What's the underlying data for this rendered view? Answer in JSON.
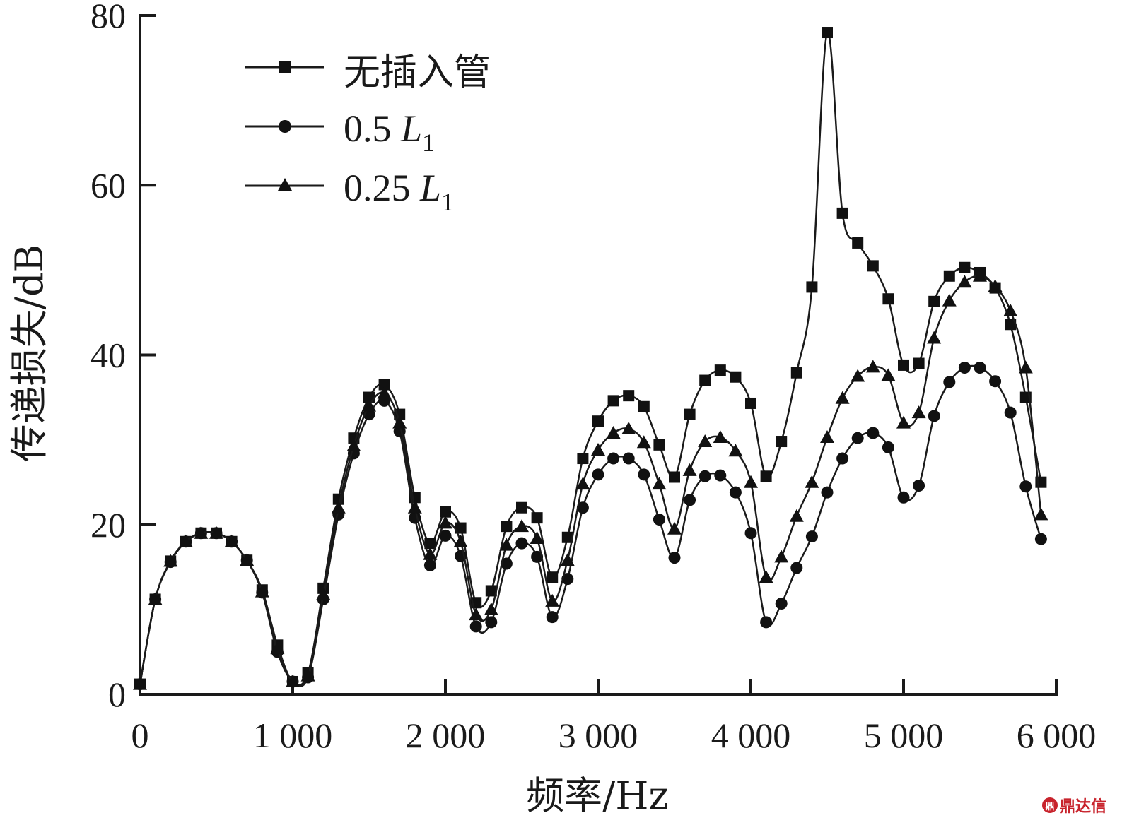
{
  "chart_data": {
    "type": "line",
    "title": "",
    "xlabel": "频率/Hz",
    "ylabel": "传递损失/dB",
    "xlim": [
      0,
      6000
    ],
    "ylim": [
      0,
      80
    ],
    "xticks": [
      0,
      1000,
      2000,
      3000,
      4000,
      5000,
      6000
    ],
    "xtick_labels": [
      "0",
      "1 000",
      "2 000",
      "3 000",
      "4 000",
      "5 000",
      "6 000"
    ],
    "yticks": [
      0,
      20,
      40,
      60,
      80
    ],
    "ytick_labels": [
      "0",
      "20",
      "40",
      "60",
      "80"
    ],
    "grid": false,
    "legend_position": "upper-left",
    "x": [
      0,
      100,
      200,
      300,
      400,
      500,
      600,
      700,
      800,
      900,
      1000,
      1100,
      1200,
      1300,
      1400,
      1500,
      1600,
      1700,
      1800,
      1900,
      2000,
      2100,
      2200,
      2300,
      2400,
      2500,
      2600,
      2700,
      2800,
      2900,
      3000,
      3100,
      3200,
      3300,
      3400,
      3500,
      3600,
      3700,
      3800,
      3900,
      4000,
      4100,
      4200,
      4300,
      4400,
      4500,
      4600,
      4700,
      4800,
      4900,
      5000,
      5100,
      5200,
      5300,
      5400,
      5500,
      5600,
      5700,
      5800,
      5900
    ],
    "series": [
      {
        "name": "无插入管",
        "marker": "square",
        "values": [
          1.2,
          11.2,
          15.7,
          18.0,
          19.0,
          19.0,
          18.0,
          15.8,
          12.3,
          5.8,
          1.5,
          2.5,
          12.5,
          23.0,
          30.2,
          35.0,
          36.5,
          33.0,
          23.2,
          17.8,
          21.5,
          19.6,
          10.8,
          12.2,
          19.8,
          22.0,
          20.8,
          13.8,
          18.5,
          27.8,
          32.2,
          34.6,
          35.2,
          33.9,
          29.4,
          25.6,
          33.0,
          37.0,
          38.2,
          37.4,
          34.3,
          25.7,
          29.8,
          37.9,
          48.0,
          78.0,
          56.7,
          53.2,
          50.5,
          46.6,
          38.8,
          39.0,
          46.3,
          49.3,
          50.3,
          49.7,
          47.9,
          43.6,
          35.0,
          25.0
        ]
      },
      {
        "name": "0.5 L1",
        "marker": "circle",
        "values": [
          1.2,
          11.2,
          15.6,
          18.0,
          19.0,
          19.0,
          18.0,
          15.8,
          12.0,
          5.0,
          1.5,
          2.0,
          11.2,
          21.2,
          28.4,
          33.0,
          34.6,
          31.0,
          20.8,
          15.2,
          18.7,
          16.3,
          8.0,
          8.5,
          15.4,
          17.8,
          16.2,
          9.1,
          13.6,
          22.0,
          25.9,
          27.8,
          27.8,
          25.9,
          20.6,
          16.1,
          22.9,
          25.7,
          25.8,
          23.8,
          19.0,
          8.5,
          10.7,
          14.9,
          18.6,
          23.8,
          27.8,
          30.2,
          30.8,
          29.1,
          23.2,
          24.6,
          32.8,
          36.8,
          38.5,
          38.5,
          36.9,
          33.2,
          24.5,
          18.3
        ]
      },
      {
        "name": "0.25 L1",
        "marker": "triangle",
        "values": [
          1.2,
          11.2,
          15.7,
          18.0,
          19.0,
          19.0,
          18.0,
          15.8,
          12.1,
          5.4,
          1.5,
          2.2,
          11.8,
          22.0,
          29.3,
          34.0,
          35.5,
          32.0,
          22.0,
          16.5,
          20.2,
          18.0,
          9.4,
          10.0,
          17.6,
          19.8,
          18.4,
          11.0,
          15.8,
          24.8,
          28.8,
          30.8,
          31.3,
          29.7,
          24.8,
          19.5,
          26.4,
          29.8,
          30.3,
          28.7,
          25.0,
          13.8,
          16.2,
          21.0,
          25.0,
          30.3,
          34.9,
          37.5,
          38.6,
          37.6,
          32.0,
          33.2,
          42.0,
          46.4,
          48.6,
          49.3,
          48.1,
          45.2,
          38.5,
          21.2
        ]
      }
    ]
  },
  "legend": {
    "items": [
      {
        "label": "无插入管",
        "marker": "square"
      },
      {
        "label_main": "0.5 ",
        "label_var": "L",
        "label_sub": "1",
        "marker": "circle"
      },
      {
        "label_main": "0.25 ",
        "label_var": "L",
        "label_sub": "1",
        "marker": "triangle"
      }
    ]
  },
  "watermark": {
    "text": "鼎达信",
    "icon": "logo-icon"
  },
  "colors": {
    "line": "#1a1a1a",
    "axis": "#1a1a1a",
    "watermark": "#c8232c"
  }
}
